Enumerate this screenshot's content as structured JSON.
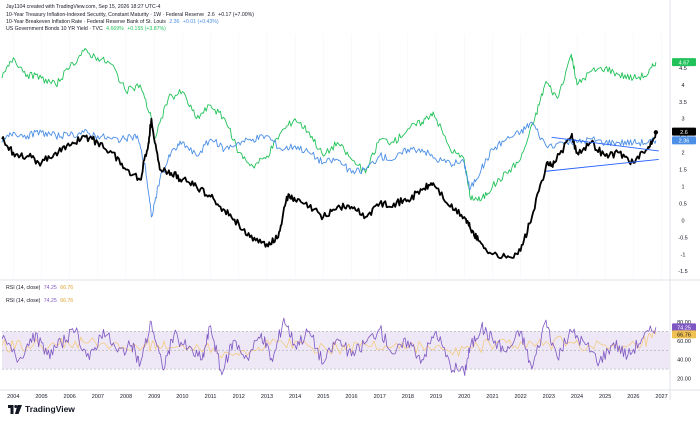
{
  "meta": {
    "credit": "Jay1104 created with TradingView.com, Sep 15, 2026 18:27 UTC-4"
  },
  "legend": [
    {
      "label": "10-Year Treasury Inflation-Indexed Security, Constant Maturity · 1W · Federal Reserve",
      "value": "2.6",
      "change": "+0.17 (+7.00%)",
      "color": "#131722"
    },
    {
      "label": "10-Year Breakeven Inflation Rate · Federal Reserve Bank of St. Louis",
      "value": "2.36",
      "change": "+0.01 (+0.43%)",
      "color": "#4c8fe6"
    },
    {
      "label": "US Government Bonds 10 YR Yield · TVC",
      "value": "4.669%",
      "change": "+0.155 (+3.87%)",
      "color": "#22c25a"
    }
  ],
  "rsi_legend": [
    {
      "label": "RSI (14, close)",
      "v1": "74.25",
      "v2": "66.76"
    },
    {
      "label": "RSI (14, close)",
      "v1": "74.25",
      "v2": "66.76"
    }
  ],
  "colors": {
    "tips": "#000000",
    "breakeven": "#4c8fe6",
    "us10y": "#22c25a",
    "rsi": "#7e57c2",
    "rsi_ma": "#f7c873",
    "rsi_band": "#ede7f6",
    "trendline": "#2962ff"
  },
  "chart_data": [
    {
      "type": "line",
      "x_ticks": [
        "2004",
        "2005",
        "2006",
        "2007",
        "2008",
        "2009",
        "2010",
        "2011",
        "2012",
        "2013",
        "2014",
        "2015",
        "2016",
        "2017",
        "2018",
        "2019",
        "2020",
        "2021",
        "2022",
        "2023",
        "2024",
        "2025",
        "2026",
        "2027"
      ],
      "xlim": [
        2003.6,
        2027.3
      ],
      "ylim": [
        -1.7,
        5.5
      ],
      "y_ticks": [
        "4.5",
        "4",
        "3.5",
        "3",
        "2.5",
        "2",
        "1.5",
        "1",
        "0.5",
        "0",
        "-0.5",
        "-1",
        "-1.5"
      ],
      "last_value_labels": [
        "4.67",
        "2.6",
        "2.36"
      ],
      "series": [
        {
          "color_key": "us10y",
          "x": [
            2003.6,
            2004.0,
            2004.5,
            2005.0,
            2005.5,
            2006.0,
            2006.5,
            2007.0,
            2007.5,
            2008.0,
            2008.5,
            2008.9,
            2009.0,
            2009.5,
            2010.0,
            2010.5,
            2011.0,
            2011.5,
            2012.0,
            2012.5,
            2013.0,
            2013.5,
            2014.0,
            2014.5,
            2015.0,
            2015.5,
            2016.0,
            2016.5,
            2017.0,
            2017.5,
            2018.0,
            2018.5,
            2018.9,
            2019.5,
            2020.0,
            2020.2,
            2020.6,
            2021.0,
            2021.5,
            2022.0,
            2022.5,
            2022.9,
            2023.3,
            2023.8,
            2024.0,
            2024.5,
            2025.0,
            2025.5,
            2026.0,
            2026.5,
            2026.8
          ],
          "values": [
            4.2,
            4.8,
            4.3,
            4.2,
            4.0,
            4.5,
            5.0,
            4.8,
            4.6,
            3.8,
            4.0,
            3.0,
            2.4,
            3.6,
            3.8,
            3.0,
            3.4,
            3.0,
            2.0,
            1.6,
            1.9,
            2.6,
            3.0,
            2.6,
            1.9,
            2.3,
            1.8,
            1.4,
            2.4,
            2.3,
            2.7,
            2.9,
            3.2,
            2.1,
            1.8,
            0.7,
            0.6,
            1.0,
            1.4,
            1.8,
            3.0,
            4.1,
            3.6,
            4.9,
            4.0,
            4.4,
            4.5,
            4.3,
            4.2,
            4.3,
            4.67
          ]
        },
        {
          "color_key": "breakeven",
          "x": [
            2003.6,
            2004.0,
            2004.5,
            2005.0,
            2005.5,
            2006.0,
            2006.5,
            2007.0,
            2007.5,
            2008.0,
            2008.4,
            2008.7,
            2008.9,
            2009.2,
            2009.6,
            2010.0,
            2010.5,
            2011.0,
            2011.5,
            2012.0,
            2012.5,
            2013.0,
            2013.5,
            2014.0,
            2014.5,
            2015.0,
            2015.5,
            2016.0,
            2016.5,
            2017.0,
            2017.5,
            2018.0,
            2018.5,
            2019.0,
            2019.5,
            2020.0,
            2020.2,
            2020.6,
            2021.0,
            2021.5,
            2022.0,
            2022.4,
            2022.9,
            2023.5,
            2024.0,
            2024.5,
            2025.0,
            2025.5,
            2026.0,
            2026.5,
            2026.8
          ],
          "values": [
            2.3,
            2.6,
            2.5,
            2.6,
            2.5,
            2.5,
            2.6,
            2.5,
            2.4,
            2.4,
            2.5,
            1.5,
            0.1,
            1.2,
            2.0,
            2.3,
            1.9,
            2.4,
            2.1,
            2.3,
            2.4,
            2.5,
            2.1,
            2.2,
            2.0,
            1.7,
            1.8,
            1.4,
            1.5,
            1.9,
            1.8,
            2.1,
            2.1,
            1.8,
            1.7,
            1.7,
            0.9,
            1.5,
            2.1,
            2.4,
            2.6,
            2.9,
            2.2,
            2.3,
            2.3,
            2.4,
            2.3,
            2.3,
            2.3,
            2.3,
            2.36
          ]
        },
        {
          "color_key": "tips",
          "x": [
            2003.6,
            2004.0,
            2004.5,
            2005.0,
            2005.5,
            2006.0,
            2006.5,
            2007.0,
            2007.5,
            2008.0,
            2008.5,
            2008.8,
            2008.9,
            2009.2,
            2009.6,
            2010.0,
            2010.5,
            2011.0,
            2011.5,
            2012.0,
            2012.5,
            2013.0,
            2013.4,
            2013.7,
            2014.0,
            2014.5,
            2015.0,
            2015.5,
            2016.0,
            2016.5,
            2017.0,
            2017.5,
            2018.0,
            2018.5,
            2018.9,
            2019.5,
            2020.0,
            2020.2,
            2020.5,
            2021.0,
            2021.5,
            2022.0,
            2022.4,
            2022.9,
            2023.2,
            2023.8,
            2024.0,
            2024.5,
            2025.0,
            2025.5,
            2026.0,
            2026.5,
            2026.8
          ],
          "values": [
            2.4,
            2.0,
            1.9,
            1.7,
            2.0,
            2.2,
            2.5,
            2.3,
            2.0,
            1.5,
            1.2,
            2.3,
            3.0,
            1.5,
            1.4,
            1.2,
            1.0,
            0.7,
            0.3,
            -0.1,
            -0.6,
            -0.7,
            -0.5,
            0.7,
            0.6,
            0.4,
            0.1,
            0.4,
            0.4,
            0.1,
            0.5,
            0.5,
            0.6,
            0.9,
            1.1,
            0.4,
            0.1,
            -0.2,
            -0.6,
            -1.0,
            -1.1,
            -0.9,
            0.1,
            1.6,
            1.7,
            2.5,
            2.0,
            2.3,
            1.9,
            2.0,
            1.7,
            2.1,
            2.6
          ]
        }
      ]
    },
    {
      "type": "line",
      "ylim": [
        10,
        100
      ],
      "y_ticks": [
        "80.00",
        "60.00",
        "40.00",
        "20.00"
      ],
      "last_value_labels": [
        "74.25",
        "66.76"
      ],
      "series": [
        {
          "color_key": "rsi",
          "x": [
            2003.6,
            2004.2,
            2004.7,
            2005.2,
            2005.7,
            2006.2,
            2006.7,
            2007.2,
            2007.7,
            2008.2,
            2008.5,
            2008.9,
            2009.3,
            2009.7,
            2010.2,
            2010.7,
            2011.0,
            2011.4,
            2011.8,
            2012.3,
            2012.8,
            2013.2,
            2013.6,
            2014.0,
            2014.5,
            2015.0,
            2015.5,
            2016.0,
            2016.5,
            2017.0,
            2017.5,
            2018.0,
            2018.5,
            2019.0,
            2019.5,
            2020.0,
            2020.2,
            2020.6,
            2021.0,
            2021.5,
            2022.0,
            2022.4,
            2022.9,
            2023.3,
            2023.8,
            2024.3,
            2024.8,
            2025.3,
            2025.8,
            2026.3,
            2026.8
          ],
          "values": [
            62,
            40,
            68,
            45,
            58,
            70,
            40,
            72,
            48,
            55,
            35,
            80,
            30,
            66,
            52,
            40,
            76,
            24,
            60,
            42,
            68,
            38,
            84,
            55,
            70,
            36,
            62,
            44,
            58,
            72,
            46,
            60,
            40,
            70,
            34,
            26,
            52,
            74,
            62,
            48,
            70,
            30,
            82,
            42,
            70,
            56,
            38,
            58,
            44,
            62,
            74.25
          ]
        },
        {
          "color_key": "rsi_ma",
          "x": [
            2003.6,
            2004.5,
            2005.5,
            2006.5,
            2007.5,
            2008.5,
            2009.0,
            2009.5,
            2010.5,
            2011.5,
            2012.5,
            2013.5,
            2014.5,
            2015.5,
            2016.5,
            2017.5,
            2018.5,
            2019.5,
            2020.5,
            2021.5,
            2022.5,
            2023.5,
            2024.5,
            2025.5,
            2026.3,
            2026.8
          ],
          "values": [
            55,
            54,
            56,
            58,
            55,
            50,
            58,
            52,
            56,
            48,
            50,
            60,
            54,
            52,
            56,
            55,
            54,
            48,
            54,
            58,
            54,
            60,
            54,
            50,
            56,
            66.76
          ]
        }
      ]
    }
  ]
}
